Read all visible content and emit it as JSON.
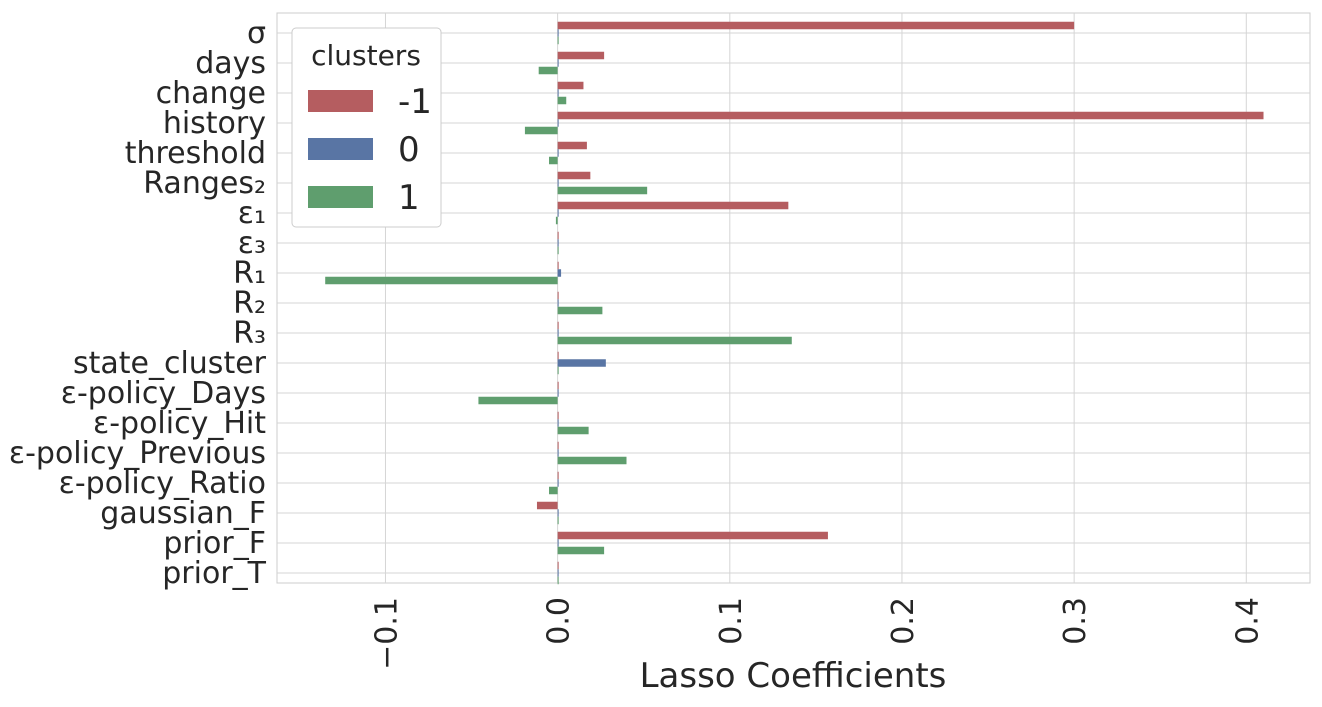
{
  "chart_data": {
    "type": "bar",
    "orientation": "horizontal",
    "categories": [
      "σ",
      "days",
      "change",
      "history",
      "threshold",
      "Ranges₂",
      "ε₁",
      "ε₃",
      "R₁",
      "R₂",
      "R₃",
      "state_cluster",
      "ε-policy_Days",
      "ε-policy_Hit",
      "ε-policy_Previous",
      "ε-policy_Ratio",
      "gaussian_F",
      "prior_F",
      "prior_T"
    ],
    "series": [
      {
        "name": "-1",
        "color": "#b55d60",
        "values": [
          0.3,
          0.027,
          0.015,
          0.41,
          0.017,
          0.019,
          0.134,
          0.0,
          0.0,
          0.0,
          0.0,
          0.0,
          0.0,
          0.0,
          0.0,
          0.0,
          -0.012,
          0.157,
          0.0
        ]
      },
      {
        "name": "0",
        "color": "#5975a4",
        "values": [
          0.0,
          0.0,
          0.0,
          0.0,
          0.0,
          0.0,
          0.0,
          0.0,
          0.002,
          0.0,
          0.0,
          0.028,
          0.0,
          0.0,
          0.0,
          0.0,
          0.0,
          0.0,
          0.0
        ]
      },
      {
        "name": "1",
        "color": "#5f9e6e",
        "values": [
          0.0,
          -0.011,
          0.005,
          -0.019,
          -0.005,
          0.052,
          -0.001,
          0.0,
          -0.135,
          0.026,
          0.136,
          0.0,
          -0.046,
          0.018,
          0.04,
          -0.005,
          0.0,
          0.027,
          0.0
        ]
      }
    ],
    "xlabel": "Lasso Coefficients",
    "ylabel": "",
    "xlim": [
      -0.163,
      0.437
    ],
    "xticks": [
      -0.1,
      0.0,
      0.1,
      0.2,
      0.3,
      0.4
    ],
    "xtick_labels": [
      "−0.1",
      "0.0",
      "0.1",
      "0.2",
      "0.3",
      "0.4"
    ],
    "grid": true,
    "legend": {
      "title": "clusters",
      "position": "top-left",
      "entries": [
        "-1",
        "0",
        "1"
      ]
    }
  }
}
